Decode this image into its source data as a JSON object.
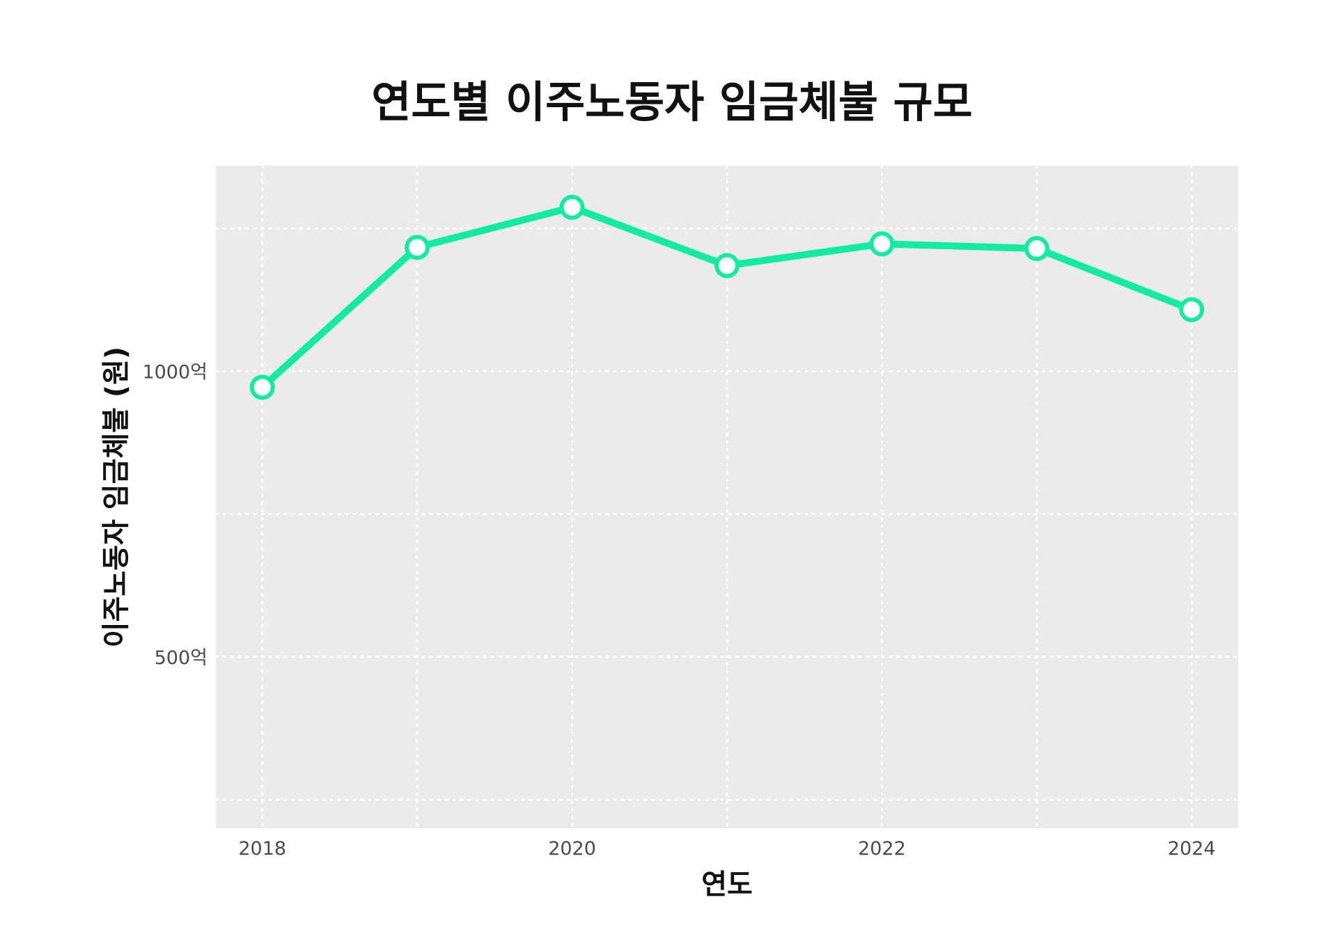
{
  "chart_data": {
    "type": "line",
    "title": "연도별 이주노동자 임금체불 규모",
    "xlabel": "연도",
    "ylabel": "이주노동자 임금체불 (원)",
    "x": [
      2018,
      2019,
      2020,
      2021,
      2022,
      2023,
      2024
    ],
    "series": [
      {
        "values": [
          972,
          1217,
          1287,
          1185,
          1223,
          1215,
          1108
        ]
      }
    ],
    "xlim": [
      2017.7,
      2024.3
    ],
    "ylim": [
      200,
      1360
    ],
    "x_ticks": [
      2018,
      2020,
      2022,
      2024
    ],
    "x_tick_labels": [
      "2018",
      "2020",
      "2022",
      "2024"
    ],
    "y_ticks": [
      500,
      1000
    ],
    "y_tick_labels": [
      "500억",
      "1000억"
    ],
    "grid": true,
    "legend": "none",
    "colors": {
      "line": "#12EBA0",
      "marker_fill": "#ffffff",
      "panel_bg": "#EBEBEB",
      "grid": "#ffffff"
    }
  }
}
